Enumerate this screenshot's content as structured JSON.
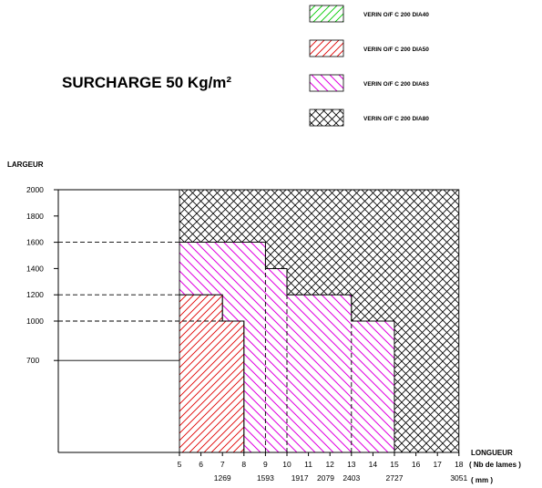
{
  "chart_data": {
    "type": "area",
    "title": "SURCHARGE 50 Kg/m²",
    "ylabel": "LARGEUR",
    "xlabel": [
      "LONGUEUR",
      "( Nb de lames )",
      "( mm )"
    ],
    "y_ticks": [
      700,
      1000,
      1200,
      1400,
      1600,
      1800,
      2000
    ],
    "x_ticks": [
      5,
      6,
      7,
      8,
      9,
      10,
      11,
      12,
      13,
      14,
      15,
      16,
      17,
      18
    ],
    "x_mm_ticks": [
      {
        "at": 7,
        "label": "1269"
      },
      {
        "at": 9,
        "label": "1593"
      },
      {
        "at": 10.6,
        "label": "1917"
      },
      {
        "at": 11.8,
        "label": "2079"
      },
      {
        "at": 13,
        "label": "2403"
      },
      {
        "at": 15,
        "label": "2727"
      },
      {
        "at": 18,
        "label": "3051"
      }
    ],
    "legend_placement": "top-right",
    "series": [
      {
        "name": "VERIN O/F C 200 DIA40",
        "color": "#00cc00",
        "pattern": "hatch-right",
        "region": []
      },
      {
        "name": "VERIN O/F C 200 DIA50",
        "color": "#e00000",
        "pattern": "hatch-right",
        "region": [
          [
            5,
            0
          ],
          [
            5,
            1200
          ],
          [
            7,
            1200
          ],
          [
            7,
            1000
          ],
          [
            8,
            1000
          ],
          [
            8,
            0
          ]
        ]
      },
      {
        "name": "VERIN O/F C 200 DIA63",
        "color": "#e000e0",
        "pattern": "hatch-left",
        "region": [
          [
            8,
            0
          ],
          [
            8,
            1000
          ],
          [
            7,
            1000
          ],
          [
            7,
            1200
          ],
          [
            5,
            1200
          ],
          [
            5,
            1600
          ],
          [
            9,
            1600
          ],
          [
            9,
            1400
          ],
          [
            10,
            1400
          ],
          [
            10,
            1200
          ],
          [
            13,
            1200
          ],
          [
            13,
            1000
          ],
          [
            15,
            1000
          ],
          [
            15,
            0
          ]
        ]
      },
      {
        "name": "VERIN O/F C 200 DIA80",
        "color": "#000000",
        "pattern": "crosshatch",
        "region": [
          [
            5,
            1600
          ],
          [
            5,
            2000
          ],
          [
            18,
            2000
          ],
          [
            18,
            0
          ],
          [
            15,
            0
          ],
          [
            15,
            1000
          ],
          [
            13,
            1000
          ],
          [
            13,
            1200
          ],
          [
            10,
            1200
          ],
          [
            10,
            1400
          ],
          [
            9,
            1400
          ],
          [
            9,
            1600
          ]
        ]
      }
    ],
    "reference_lines": [
      {
        "y": 700,
        "x_from": 0,
        "x_to": 5,
        "style": "solid"
      },
      {
        "y": 1000,
        "x_from": 0,
        "x_to": 7,
        "style": "dashed"
      },
      {
        "y": 1200,
        "x_from": 0,
        "x_to": 5,
        "style": "dashed"
      },
      {
        "y": 1600,
        "x_from": 0,
        "x_to": 5,
        "style": "dashed"
      },
      {
        "x": 9,
        "y_from": 0,
        "y_to": 1400,
        "style": "dashed"
      },
      {
        "x": 10,
        "y_from": 0,
        "y_to": 1200,
        "style": "dashed"
      },
      {
        "x": 13,
        "y_from": 0,
        "y_to": 1000,
        "style": "dashed"
      }
    ]
  }
}
